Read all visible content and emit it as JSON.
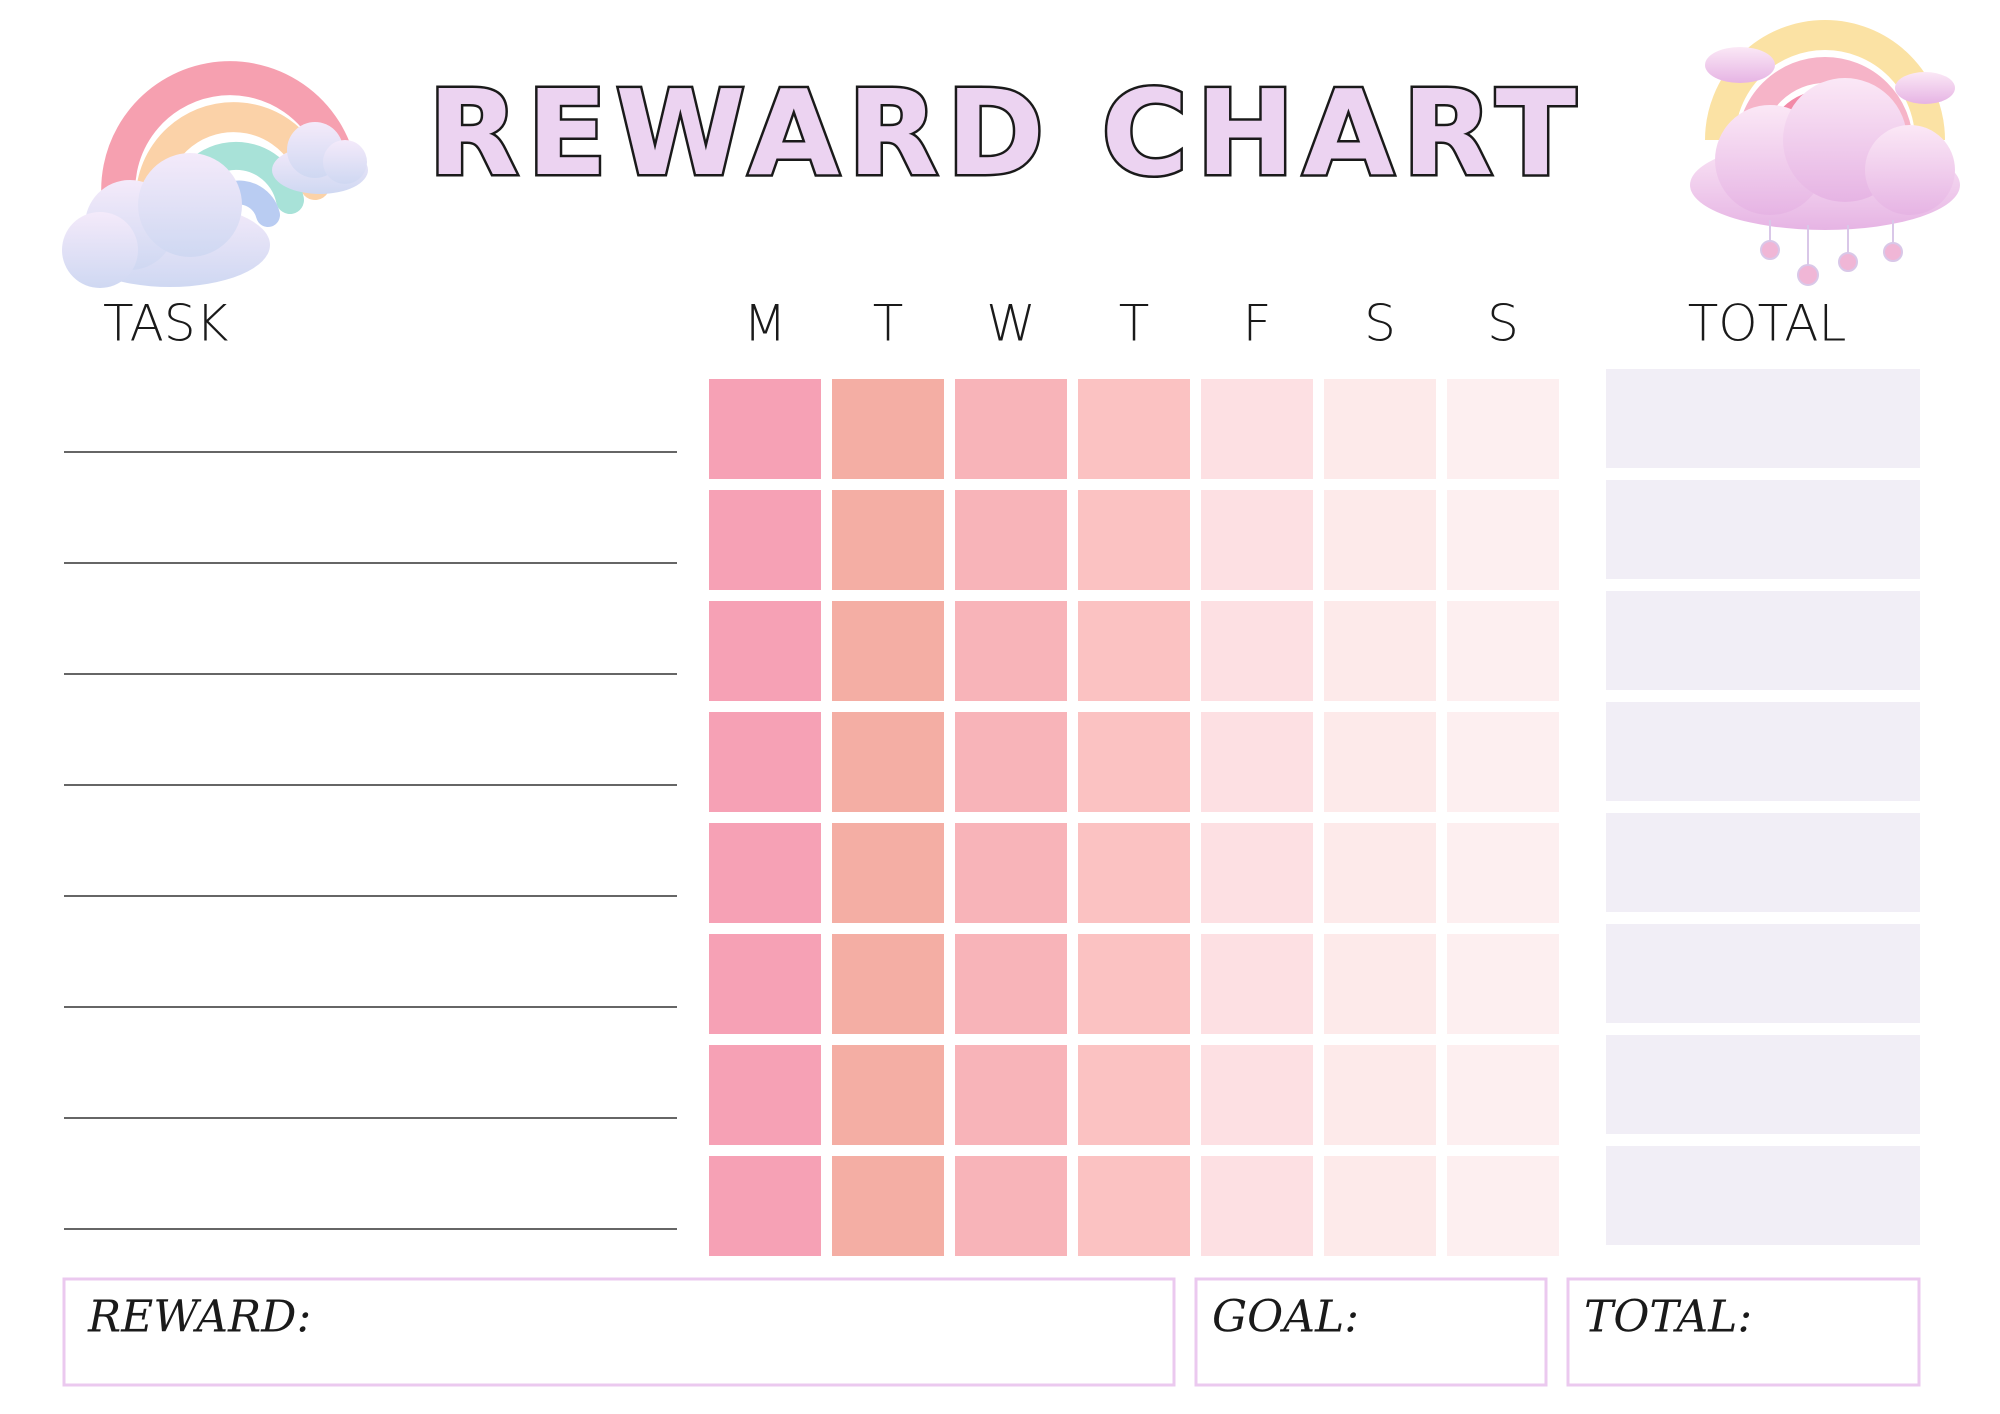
{
  "header": {
    "title": "REWARD CHART"
  },
  "table": {
    "task_header": "TASK",
    "days": [
      "M",
      "T",
      "W",
      "T",
      "F",
      "S",
      "S"
    ],
    "total_header": "TOTAL"
  },
  "footer": {
    "reward": "REWARD:",
    "goal": "GOAL:",
    "total": "TOTAL:"
  }
}
